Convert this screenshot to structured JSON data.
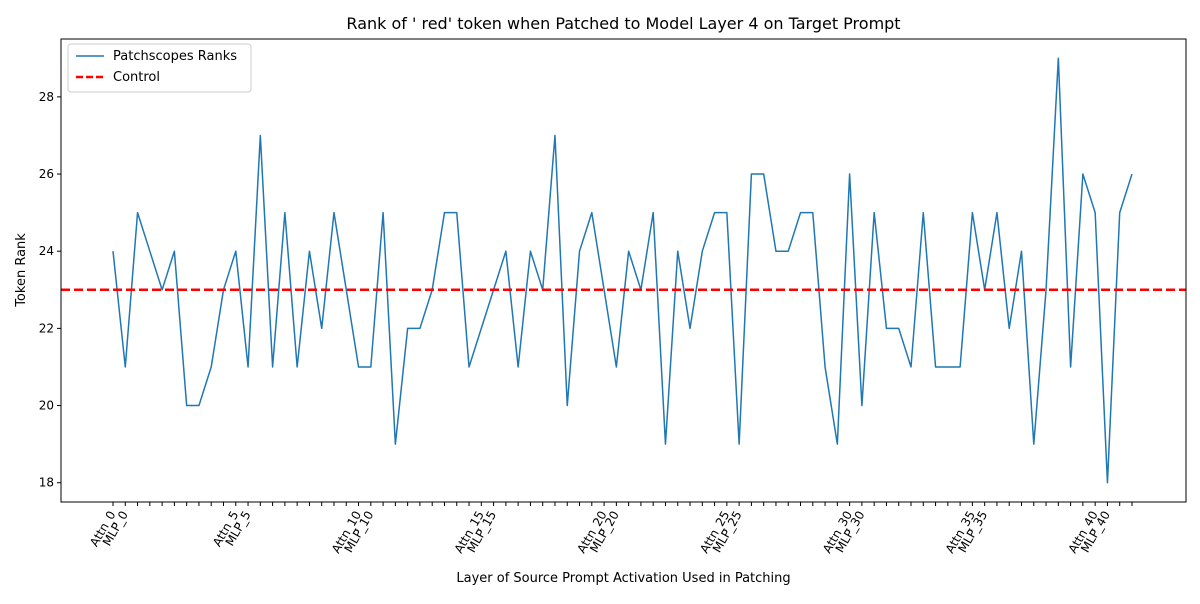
{
  "chart_data": {
    "type": "line",
    "title": "Rank of ' red' token when Patched to Model Layer 4 on Target Prompt",
    "xlabel": "Layer of Source Prompt Activation Used in Patching",
    "ylabel": "Token Rank",
    "ylim": [
      17.5,
      29.5
    ],
    "yticks": [
      18,
      20,
      22,
      24,
      26,
      28
    ],
    "x_labeled_ticks": [
      {
        "index": 0,
        "label": "Attn_0"
      },
      {
        "index": 1,
        "label": "MLP_0"
      },
      {
        "index": 10,
        "label": "Attn_5"
      },
      {
        "index": 11,
        "label": "MLP_5"
      },
      {
        "index": 20,
        "label": "Attn_10"
      },
      {
        "index": 21,
        "label": "MLP_10"
      },
      {
        "index": 30,
        "label": "Attn_15"
      },
      {
        "index": 31,
        "label": "MLP_15"
      },
      {
        "index": 40,
        "label": "Attn_20"
      },
      {
        "index": 41,
        "label": "MLP_20"
      },
      {
        "index": 50,
        "label": "Attn_25"
      },
      {
        "index": 51,
        "label": "MLP_25"
      },
      {
        "index": 60,
        "label": "Attn_30"
      },
      {
        "index": 61,
        "label": "MLP_30"
      },
      {
        "index": 70,
        "label": "Attn_35"
      },
      {
        "index": 71,
        "label": "MLP_35"
      },
      {
        "index": 80,
        "label": "Attn_40"
      },
      {
        "index": 81,
        "label": "MLP_40"
      }
    ],
    "series": [
      {
        "name": "Patchscopes Ranks",
        "color": "#1f77b4",
        "style": "solid",
        "values": [
          24,
          21,
          25,
          24,
          23,
          24,
          20,
          20,
          21,
          23,
          24,
          21,
          27,
          21,
          25,
          21,
          24,
          22,
          25,
          23,
          21,
          21,
          25,
          19,
          22,
          22,
          23,
          25,
          25,
          21,
          22,
          23,
          24,
          21,
          24,
          23,
          27,
          20,
          24,
          25,
          23,
          21,
          24,
          23,
          25,
          19,
          24,
          22,
          24,
          25,
          25,
          19,
          26,
          26,
          24,
          24,
          25,
          25,
          21,
          19,
          26,
          20,
          25,
          22,
          22,
          21,
          25,
          21,
          21,
          21,
          25,
          23,
          25,
          22,
          24,
          19,
          23,
          29,
          21,
          26,
          25,
          18,
          25,
          26
        ]
      },
      {
        "name": "Control",
        "color": "#ff0000",
        "style": "dashed",
        "value": 23
      }
    ],
    "legend_position": "top-left",
    "grid": false
  }
}
